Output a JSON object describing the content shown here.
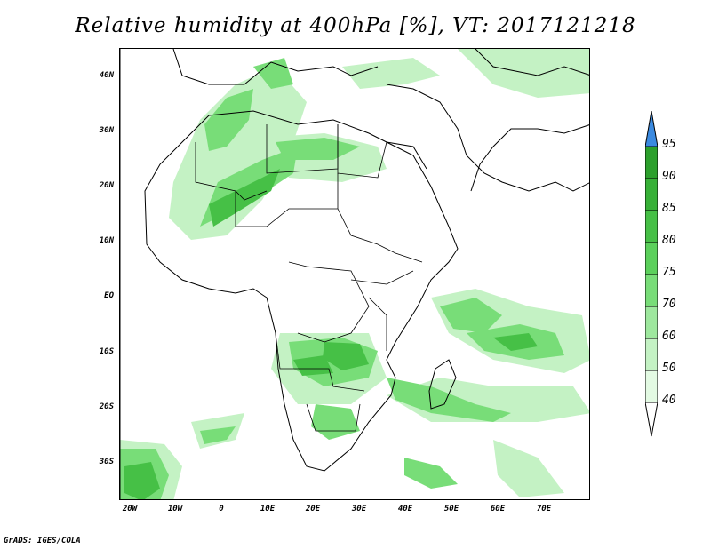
{
  "title": "Relative humidity at 400hPa [%], VT: 2017121218",
  "credit": "GrADS: IGES/COLA",
  "map": {
    "lat_labels": [
      "40N",
      "30N",
      "20N",
      "10N",
      "EQ",
      "10S",
      "20S",
      "30S"
    ],
    "lon_labels": [
      "20W",
      "10W",
      "0",
      "10E",
      "20E",
      "30E",
      "40E",
      "50E",
      "60E",
      "70E"
    ],
    "lon_range": [
      -22,
      80
    ],
    "lat_range": [
      -37,
      45
    ]
  },
  "legend": {
    "labels": [
      "95",
      "90",
      "85",
      "80",
      "75",
      "70",
      "60",
      "50",
      "40"
    ],
    "colors": [
      "#3b8ae0",
      "#2ca02c",
      "#37b137",
      "#46c046",
      "#5bd05b",
      "#78dd78",
      "#9ee89e",
      "#c4f2c4",
      "#e3fae3",
      "#ffffff"
    ]
  }
}
